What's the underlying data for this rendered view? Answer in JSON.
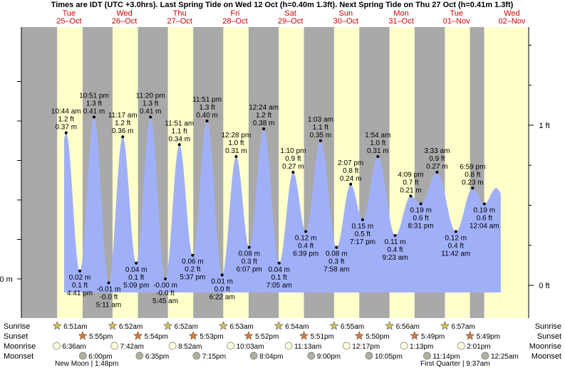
{
  "title": "Times are IDT (UTC +3.0hrs). Last Spring Tide on Wed 12 Oct (h=0.40m 1.3ft). Next Spring Tide on Thu 27 Oct (h=0.41m 1.3ft)",
  "colors": {
    "day": "#ffffcc",
    "night": "#a9a9a9",
    "tide_fill": "#a0b0f8",
    "date_text": "#d00000",
    "axis": "#000000"
  },
  "chart_data": {
    "type": "area",
    "days": [
      {
        "day": "Tue",
        "date": "25–Oct"
      },
      {
        "day": "Wed",
        "date": "26–Oct"
      },
      {
        "day": "Thu",
        "date": "27–Oct"
      },
      {
        "day": "Fri",
        "date": "28–Oct"
      },
      {
        "day": "Sat",
        "date": "29–Oct"
      },
      {
        "day": "Sun",
        "date": "30–Oct"
      },
      {
        "day": "Mon",
        "date": "31–Oct"
      },
      {
        "day": "Tue",
        "date": "01–Nov"
      },
      {
        "day": "Wed",
        "date": "02–Nov"
      }
    ],
    "left_axis": {
      "unit": "m",
      "labels": [
        {
          "value": 0.0,
          "text": "0.0 m"
        }
      ]
    },
    "right_axis": {
      "unit": "ft",
      "labels": [
        {
          "value": 0,
          "text": "0 ft"
        },
        {
          "value": 1,
          "text": "1 ft"
        }
      ]
    },
    "y_range_m": [
      -0.05,
      0.48
    ],
    "tides": [
      {
        "day": 0,
        "time": "10:44 am",
        "m": 0.37,
        "ft": "1.2 ft",
        "label_m": "0.37 m",
        "type": "high"
      },
      {
        "day": 0,
        "time": "4:41 pm",
        "m": 0.02,
        "ft": "0.1 ft",
        "label_m": "0.02 m",
        "type": "low"
      },
      {
        "day": 0,
        "time": "10:51 pm",
        "m": 0.41,
        "ft": "1.3 ft",
        "label_m": "0.41 m",
        "type": "high"
      },
      {
        "day": 1,
        "time": "5:11 am",
        "m": -0.01,
        "ft": "-0.0 ft",
        "label_m": "-0.01 m",
        "type": "low"
      },
      {
        "day": 1,
        "time": "11:17 am",
        "m": 0.36,
        "ft": "1.2 ft",
        "label_m": "0.36 m",
        "type": "high"
      },
      {
        "day": 1,
        "time": "5:09 pm",
        "m": 0.04,
        "ft": "0.1 ft",
        "label_m": "0.04 m",
        "type": "low"
      },
      {
        "day": 1,
        "time": "11:20 pm",
        "m": 0.41,
        "ft": "1.3 ft",
        "label_m": "0.41 m",
        "type": "high"
      },
      {
        "day": 2,
        "time": "5:45 am",
        "m": -0.0,
        "ft": "-0.0 ft",
        "label_m": "-0.00 m",
        "type": "low"
      },
      {
        "day": 2,
        "time": "11:51 am",
        "m": 0.34,
        "ft": "1.1 ft",
        "label_m": "0.34 m",
        "type": "high"
      },
      {
        "day": 2,
        "time": "5:37 pm",
        "m": 0.06,
        "ft": "0.2 ft",
        "label_m": "0.06 m",
        "type": "low"
      },
      {
        "day": 2,
        "time": "11:51 pm",
        "m": 0.4,
        "ft": "1.3 ft",
        "label_m": "0.40 m",
        "type": "high"
      },
      {
        "day": 3,
        "time": "6:22 am",
        "m": 0.01,
        "ft": "0.0 ft",
        "label_m": "0.01 m",
        "type": "low"
      },
      {
        "day": 3,
        "time": "12:28 pm",
        "m": 0.31,
        "ft": "1.0 ft",
        "label_m": "0.31 m",
        "type": "high"
      },
      {
        "day": 3,
        "time": "6:07 pm",
        "m": 0.08,
        "ft": "0.3 ft",
        "label_m": "0.08 m",
        "type": "low"
      },
      {
        "day": 4,
        "time": "12:24 am",
        "m": 0.38,
        "ft": "1.2 ft",
        "label_m": "0.38 m",
        "type": "high"
      },
      {
        "day": 4,
        "time": "7:05 am",
        "m": 0.04,
        "ft": "0.1 ft",
        "label_m": "0.04 m",
        "type": "low"
      },
      {
        "day": 4,
        "time": "1:10 pm",
        "m": 0.27,
        "ft": "0.9 ft",
        "label_m": "0.27 m",
        "type": "high"
      },
      {
        "day": 4,
        "time": "6:39 pm",
        "m": 0.12,
        "ft": "0.4 ft",
        "label_m": "0.12 m",
        "type": "low"
      },
      {
        "day": 5,
        "time": "1:03 am",
        "m": 0.35,
        "ft": "1.1 ft",
        "label_m": "0.35 m",
        "type": "high"
      },
      {
        "day": 5,
        "time": "7:58 am",
        "m": 0.08,
        "ft": "0.3 ft",
        "label_m": "0.08 m",
        "type": "low"
      },
      {
        "day": 5,
        "time": "2:07 pm",
        "m": 0.24,
        "ft": "0.8 ft",
        "label_m": "0.24 m",
        "type": "high"
      },
      {
        "day": 5,
        "time": "7:17 pm",
        "m": 0.15,
        "ft": "0.5 ft",
        "label_m": "0.15 m",
        "type": "low"
      },
      {
        "day": 6,
        "time": "1:54 am",
        "m": 0.31,
        "ft": "1.0 ft",
        "label_m": "0.31 m",
        "type": "high"
      },
      {
        "day": 6,
        "time": "9:23 am",
        "m": 0.11,
        "ft": "0.4 ft",
        "label_m": "0.11 m",
        "type": "low"
      },
      {
        "day": 6,
        "time": "4:09 pm",
        "m": 0.21,
        "ft": "0.7 ft",
        "label_m": "0.21 m",
        "type": "high"
      },
      {
        "day": 6,
        "time": "8:31 pm",
        "m": 0.19,
        "ft": "0.6 ft",
        "label_m": "0.19 m",
        "type": "low"
      },
      {
        "day": 7,
        "time": "3:33 am",
        "m": 0.27,
        "ft": "0.9 ft",
        "label_m": "0.27 m",
        "type": "high"
      },
      {
        "day": 7,
        "time": "11:42 am",
        "m": 0.12,
        "ft": "0.4 ft",
        "label_m": "0.12 m",
        "type": "low"
      },
      {
        "day": 7,
        "time": "6:59 pm",
        "m": 0.23,
        "ft": "0.8 ft",
        "label_m": "0.23 m",
        "type": "high"
      },
      {
        "day": 8,
        "time": "12:04 am",
        "m": 0.19,
        "ft": "0.6 ft",
        "label_m": "0.19 m",
        "type": "low"
      }
    ],
    "sun_moon": {
      "row_labels": [
        "Sunrise",
        "Sunset",
        "Moonrise",
        "Moonset"
      ],
      "sunrise": [
        "6:51am",
        "6:52am",
        "6:52am",
        "6:53am",
        "6:54am",
        "6:55am",
        "6:56am",
        "6:57am"
      ],
      "sunset": [
        "5:55pm",
        "5:54pm",
        "5:53pm",
        "5:52pm",
        "5:51pm",
        "5:50pm",
        "5:49pm",
        "5:49pm"
      ],
      "moonrise": [
        "6:36am",
        "7:42am",
        "8:52am",
        "10:03am",
        "11:13am",
        "12:17pm",
        "1:13pm",
        "2:01pm"
      ],
      "moonset": [
        "6:00pm",
        "6:35pm",
        "7:15pm",
        "8:04pm",
        "9:00pm",
        "10:05pm",
        "11:14pm",
        "12:25am"
      ],
      "moonset_day": [
        0,
        1,
        2,
        3,
        4,
        5,
        6,
        8
      ]
    },
    "moon_phases": [
      {
        "day": 0,
        "text": "New Moon | 1:48pm"
      },
      {
        "day": 7,
        "text": "First Quarter | 9:37am"
      }
    ]
  }
}
